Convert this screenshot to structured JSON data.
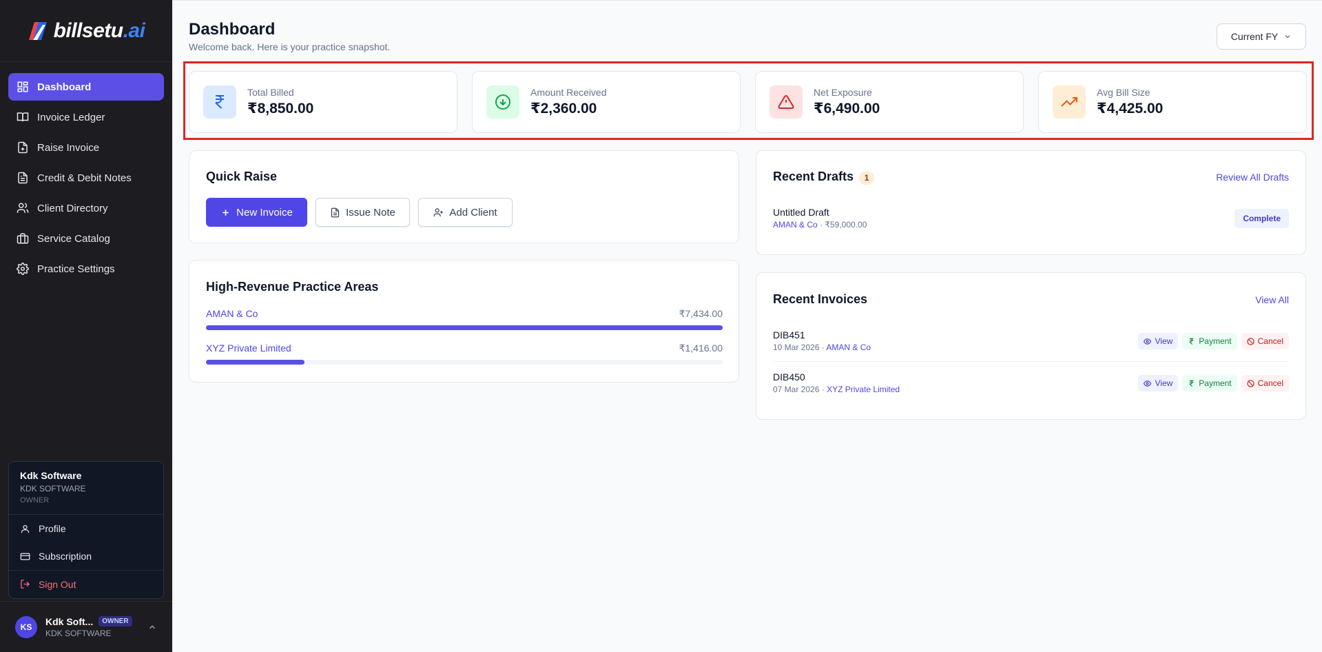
{
  "brand": {
    "logo_text": "billsetu",
    "logo_suffix": ".ai"
  },
  "sidebar": {
    "items": [
      {
        "label": "Dashboard",
        "icon": "dashboard-icon",
        "active": true
      },
      {
        "label": "Invoice Ledger",
        "icon": "book-icon"
      },
      {
        "label": "Raise Invoice",
        "icon": "file-plus-icon"
      },
      {
        "label": "Credit & Debit Notes",
        "icon": "file-text-icon"
      },
      {
        "label": "Client Directory",
        "icon": "users-icon"
      },
      {
        "label": "Service Catalog",
        "icon": "briefcase-icon"
      },
      {
        "label": "Practice Settings",
        "icon": "gear-icon"
      }
    ]
  },
  "user_menu": {
    "name": "Kdk Software",
    "org": "KDK SOFTWARE",
    "role": "OWNER",
    "items": [
      {
        "label": "Profile",
        "icon": "user-icon"
      },
      {
        "label": "Subscription",
        "icon": "credit-card-icon"
      },
      {
        "label": "Sign Out",
        "icon": "logout-icon"
      }
    ]
  },
  "profile_bar": {
    "initials": "KS",
    "name": "Kdk Soft...",
    "badge": "OWNER",
    "org": "KDK SOFTWARE"
  },
  "header": {
    "title": "Dashboard",
    "subtitle": "Welcome back. Here is your practice snapshot.",
    "fy_select": "Current FY"
  },
  "stats": [
    {
      "label": "Total Billed",
      "value": "₹8,850.00",
      "icon": "rupee-icon",
      "color": "#2563eb",
      "bg": "#dbeafe"
    },
    {
      "label": "Amount Received",
      "value": "₹2,360.00",
      "icon": "arrow-down-circle-icon",
      "color": "#16a34a",
      "bg": "#dcfce7"
    },
    {
      "label": "Net Exposure",
      "value": "₹6,490.00",
      "icon": "warning-icon",
      "color": "#dc2626",
      "bg": "#fee2e2"
    },
    {
      "label": "Avg Bill Size",
      "value": "₹4,425.00",
      "icon": "trending-up-icon",
      "color": "#ea580c",
      "bg": "#ffedd5"
    }
  ],
  "quick_raise": {
    "title": "Quick Raise",
    "new_invoice": "New Invoice",
    "issue_note": "Issue Note",
    "add_client": "Add Client"
  },
  "practice_areas": {
    "title": "High-Revenue Practice Areas",
    "rows": [
      {
        "name": "AMAN & Co",
        "amount": "₹7,434.00",
        "fraction": 1.0
      },
      {
        "name": "XYZ Private Limited",
        "amount": "₹1,416.00",
        "fraction": 0.19
      }
    ]
  },
  "recent_drafts": {
    "title": "Recent Drafts",
    "count": "1",
    "link": "Review All Drafts",
    "items": [
      {
        "title": "Untitled Draft",
        "client": "AMAN & Co",
        "amount": "₹59,000.00",
        "action": "Complete"
      }
    ]
  },
  "recent_invoices": {
    "title": "Recent Invoices",
    "link": "View All",
    "actions": {
      "view": "View",
      "payment": "Payment",
      "cancel": "Cancel"
    },
    "items": [
      {
        "number": "DIB451",
        "date": "10 Mar 2026",
        "client": "AMAN & Co"
      },
      {
        "number": "DIB450",
        "date": "07 Mar 2026",
        "client": "XYZ Private Limited"
      }
    ]
  },
  "separators": {
    "dot": " · "
  }
}
